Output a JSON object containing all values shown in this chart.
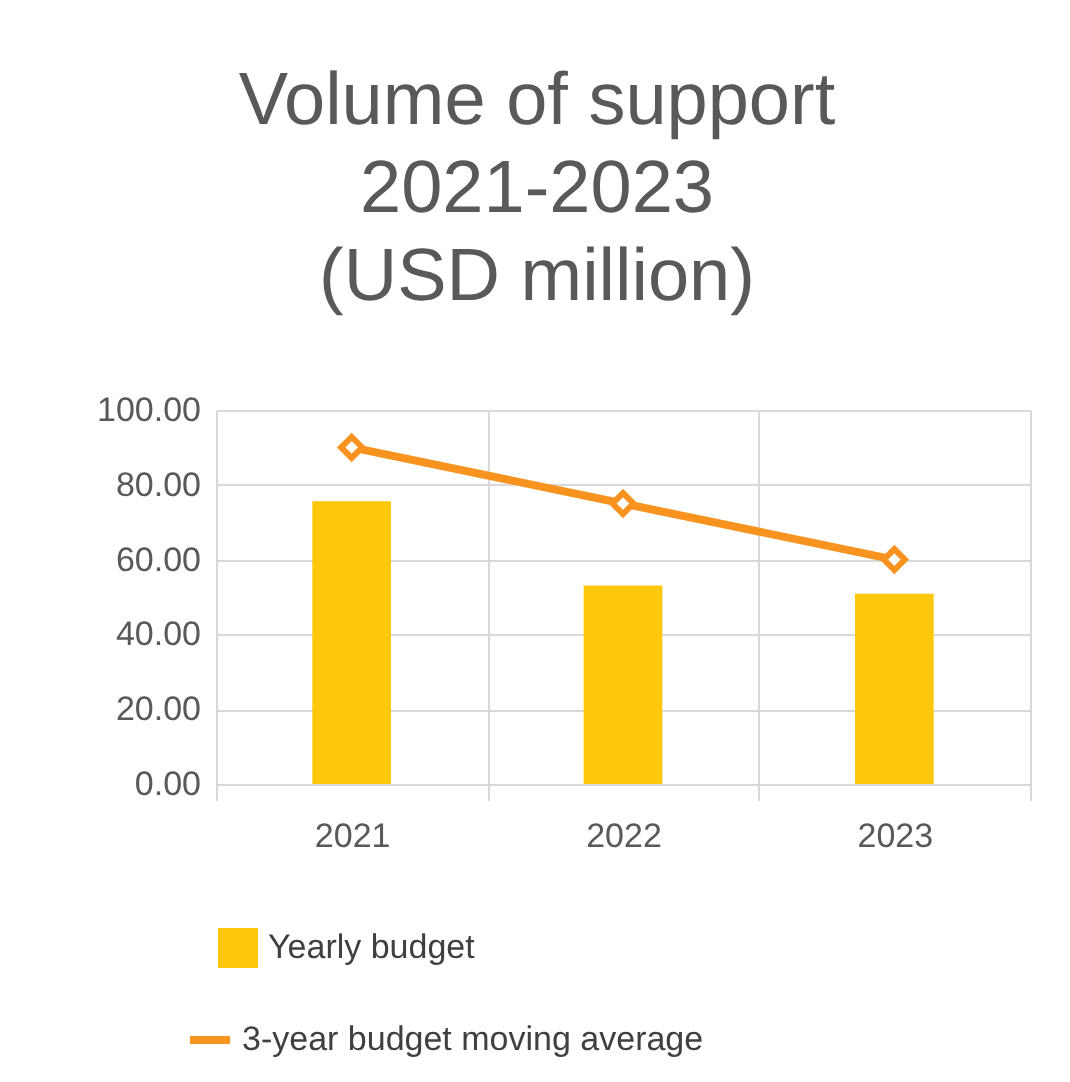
{
  "chart_data": {
    "type": "bar",
    "title": "Volume of support\n2021-2023\n(USD million)",
    "categories": [
      "2021",
      "2022",
      "2023"
    ],
    "series": [
      {
        "name": "Yearly budget",
        "color": "#fdc70c",
        "values": [
          75.6,
          53.1,
          50.9
        ]
      },
      {
        "name": "3-year budget moving average",
        "type": "line",
        "color": "#f7931e",
        "values": [
          90,
          75,
          60
        ]
      }
    ],
    "ylim": [
      0,
      100
    ],
    "yticks": [
      {
        "value": 0,
        "label": "0.00"
      },
      {
        "value": 20,
        "label": "20.00"
      },
      {
        "value": 40,
        "label": "40.00"
      },
      {
        "value": 60,
        "label": "60.00"
      },
      {
        "value": 80,
        "label": "80.00"
      },
      {
        "value": 100,
        "label": "100.00"
      }
    ],
    "grid": true,
    "legend": "bottom",
    "marker": "diamond",
    "line_style": "solid"
  }
}
